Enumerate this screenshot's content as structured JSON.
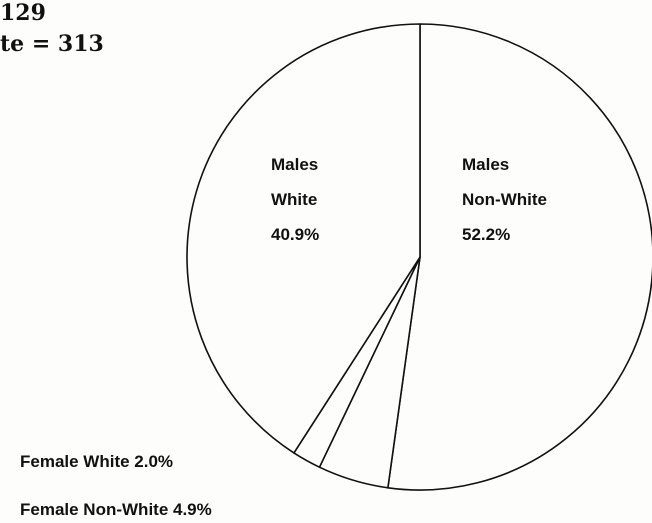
{
  "header": {
    "line1": "129",
    "line2": "te = 313"
  },
  "chart_data": {
    "type": "pie",
    "title": "",
    "start_angle_deg": 0,
    "direction": "clockwise",
    "slices": [
      {
        "name": "Males Non-White",
        "lines": [
          "Males",
          "Non-White",
          "52.2%"
        ],
        "value": 52.2,
        "label_position": "inside"
      },
      {
        "name": "Female Non-White",
        "lines": [
          "Female Non-White  4.9%"
        ],
        "value": 4.9,
        "label_position": "outside"
      },
      {
        "name": "Female White",
        "lines": [
          "Female White  2.0%"
        ],
        "value": 2.0,
        "label_position": "outside"
      },
      {
        "name": "Males White",
        "lines": [
          "Males",
          "White",
          "40.9%"
        ],
        "value": 40.9,
        "label_position": "inside"
      }
    ],
    "colors": {
      "fill": "#fdfdfb",
      "stroke": "#111111"
    }
  }
}
